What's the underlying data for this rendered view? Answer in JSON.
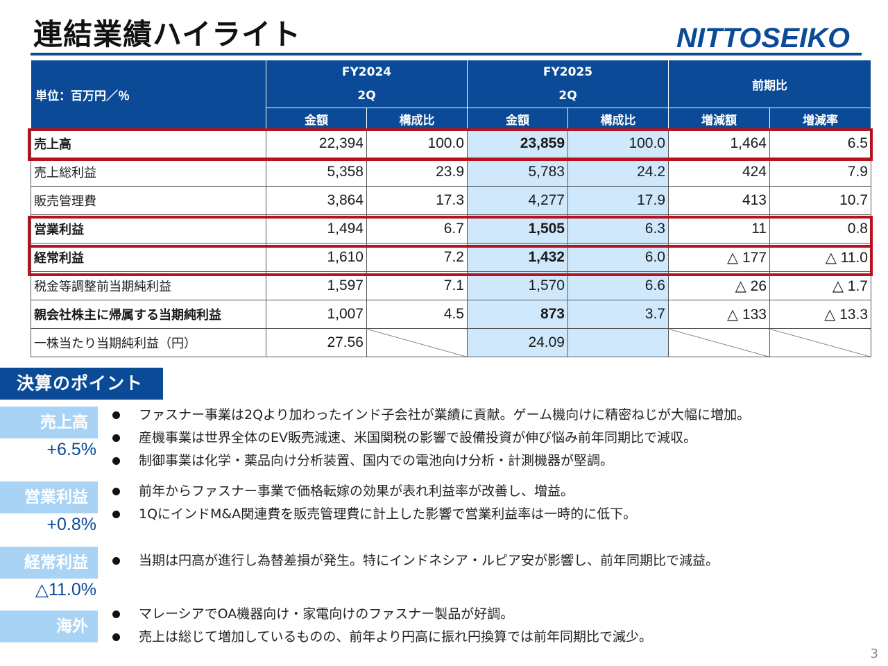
{
  "title": "連結業績ハイライト",
  "logo_text": "NITTOSEIKO",
  "table": {
    "unit_label": "単位：百万円／％",
    "fy2024": {
      "year": "FY2024",
      "quarter": "2Q"
    },
    "fy2025": {
      "year": "FY2025",
      "quarter": "2Q"
    },
    "yoy": "前期比",
    "sub_headers": [
      "金額",
      "構成比",
      "金額",
      "構成比",
      "増減額",
      "増減率"
    ],
    "rows": [
      {
        "label": "売上高",
        "a24": "22,394",
        "r24": "100.0",
        "a25": "23,859",
        "r25": "100.0",
        "diff": "1,464",
        "rate": "6.5"
      },
      {
        "label": "売上総利益",
        "a24": "5,358",
        "r24": "23.9",
        "a25": "5,783",
        "r25": "24.2",
        "diff": "424",
        "rate": "7.9"
      },
      {
        "label": "販売管理費",
        "a24": "3,864",
        "r24": "17.3",
        "a25": "4,277",
        "r25": "17.9",
        "diff": "413",
        "rate": "10.7"
      },
      {
        "label": "営業利益",
        "a24": "1,494",
        "r24": "6.7",
        "a25": "1,505",
        "r25": "6.3",
        "diff": "11",
        "rate": "0.8"
      },
      {
        "label": "経常利益",
        "a24": "1,610",
        "r24": "7.2",
        "a25": "1,432",
        "r25": "6.0",
        "diff": "△ 177",
        "rate": "△ 11.0"
      },
      {
        "label": "税金等調整前当期純利益",
        "a24": "1,597",
        "r24": "7.1",
        "a25": "1,570",
        "r25": "6.6",
        "diff": "△ 26",
        "rate": "△ 1.7"
      },
      {
        "label": "親会社株主に帰属する当期純利益",
        "a24": "1,007",
        "r24": "4.5",
        "a25": "873",
        "r25": "3.7",
        "diff": "△ 133",
        "rate": "△ 13.3"
      },
      {
        "label": "一株当たり当期純利益（円）",
        "a24": "27.56",
        "a25": "24.09"
      }
    ]
  },
  "points": {
    "heading": "決算のポイント",
    "sections": [
      {
        "category": "売上高",
        "change": "+6.5%",
        "bullets": [
          "ファスナー事業は2Qより加わったインド子会社が業績に貢献。ゲーム機向けに精密ねじが大幅に増加。",
          "産機事業は世界全体のEV販売減速、米国関税の影響で設備投資が伸び悩み前年同期比で減収。",
          "制御事業は化学・薬品向け分析装置、国内での電池向け分析・計測機器が堅調。"
        ]
      },
      {
        "category": "営業利益",
        "change": "+0.8%",
        "bullets": [
          "前年からファスナー事業で価格転嫁の効果が表れ利益率が改善し、増益。",
          "1QにインドM&A関連費を販売管理費に計上した影響で営業利益率は一時的に低下。"
        ]
      },
      {
        "category": "経常利益",
        "change": "△11.0%",
        "bullets": [
          "当期は円高が進行し為替差損が発生。特にインドネシア・ルピア安が影響し、前年同期比で減益。"
        ]
      },
      {
        "category": "海外",
        "bullets": [
          "マレーシアでOA機器向け・家電向けのファスナー製品が好調。",
          "売上は総じて増加しているものの、前年より円高に振れ円換算では前年同期比で減少。"
        ]
      }
    ]
  },
  "page_number": "3",
  "colors": {
    "brand_blue": "#0b4a96",
    "highlight": "#cfe8fb",
    "category_bg": "#a9d3f4",
    "red_frame": "#b8101c"
  }
}
